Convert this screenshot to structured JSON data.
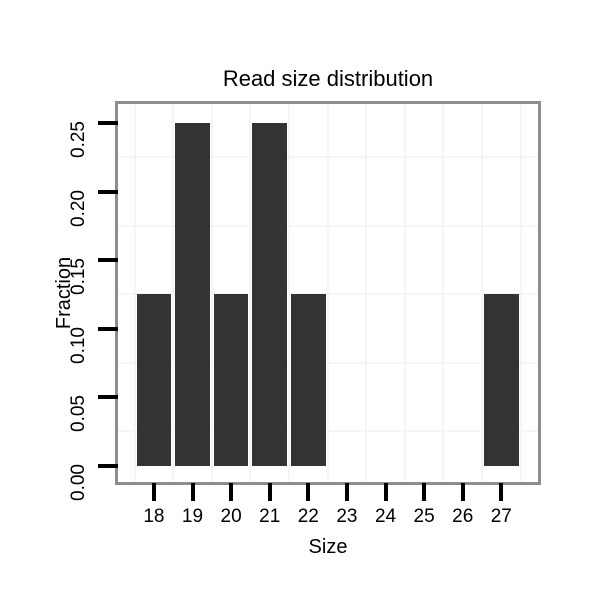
{
  "chart_data": {
    "type": "bar",
    "title": "Read size distribution",
    "xlabel": "Size",
    "ylabel": "Fraction",
    "categories": [
      18,
      19,
      20,
      21,
      22,
      23,
      24,
      25,
      26,
      27
    ],
    "values": [
      0.125,
      0.25,
      0.125,
      0.25,
      0.125,
      0,
      0,
      0,
      0,
      0.125
    ],
    "bar_width": 0.9,
    "xlim": [
      17.07,
      27.95
    ],
    "ylim": [
      -0.012,
      0.264
    ],
    "x_ticks": [
      {
        "value": 18,
        "label": "18"
      },
      {
        "value": 19,
        "label": "19"
      },
      {
        "value": 20,
        "label": "20"
      },
      {
        "value": 21,
        "label": "21"
      },
      {
        "value": 22,
        "label": "22"
      },
      {
        "value": 23,
        "label": "23"
      },
      {
        "value": 24,
        "label": "24"
      },
      {
        "value": 25,
        "label": "25"
      },
      {
        "value": 26,
        "label": "26"
      },
      {
        "value": 27,
        "label": "27"
      }
    ],
    "y_ticks": [
      {
        "value": 0.0,
        "label": "0.00"
      },
      {
        "value": 0.05,
        "label": "0.05"
      },
      {
        "value": 0.1,
        "label": "0.10"
      },
      {
        "value": 0.15,
        "label": "0.15"
      },
      {
        "value": 0.2,
        "label": "0.20"
      },
      {
        "value": 0.25,
        "label": "0.25"
      }
    ],
    "grid": {
      "minor_x": [
        17.5,
        18.5,
        19.5,
        20.5,
        21.5,
        22.5,
        23.5,
        24.5,
        25.5,
        26.5,
        27.5
      ],
      "minor_y": [
        0.025,
        0.075,
        0.125,
        0.175,
        0.225
      ],
      "major_visible": false
    },
    "legend": "none",
    "colors": {
      "bar": "#333333",
      "grid": "#f5f5f5",
      "panel_border": "#8d8d8d",
      "tick": "#000000",
      "text": "#000000",
      "background": "#ffffff"
    }
  }
}
